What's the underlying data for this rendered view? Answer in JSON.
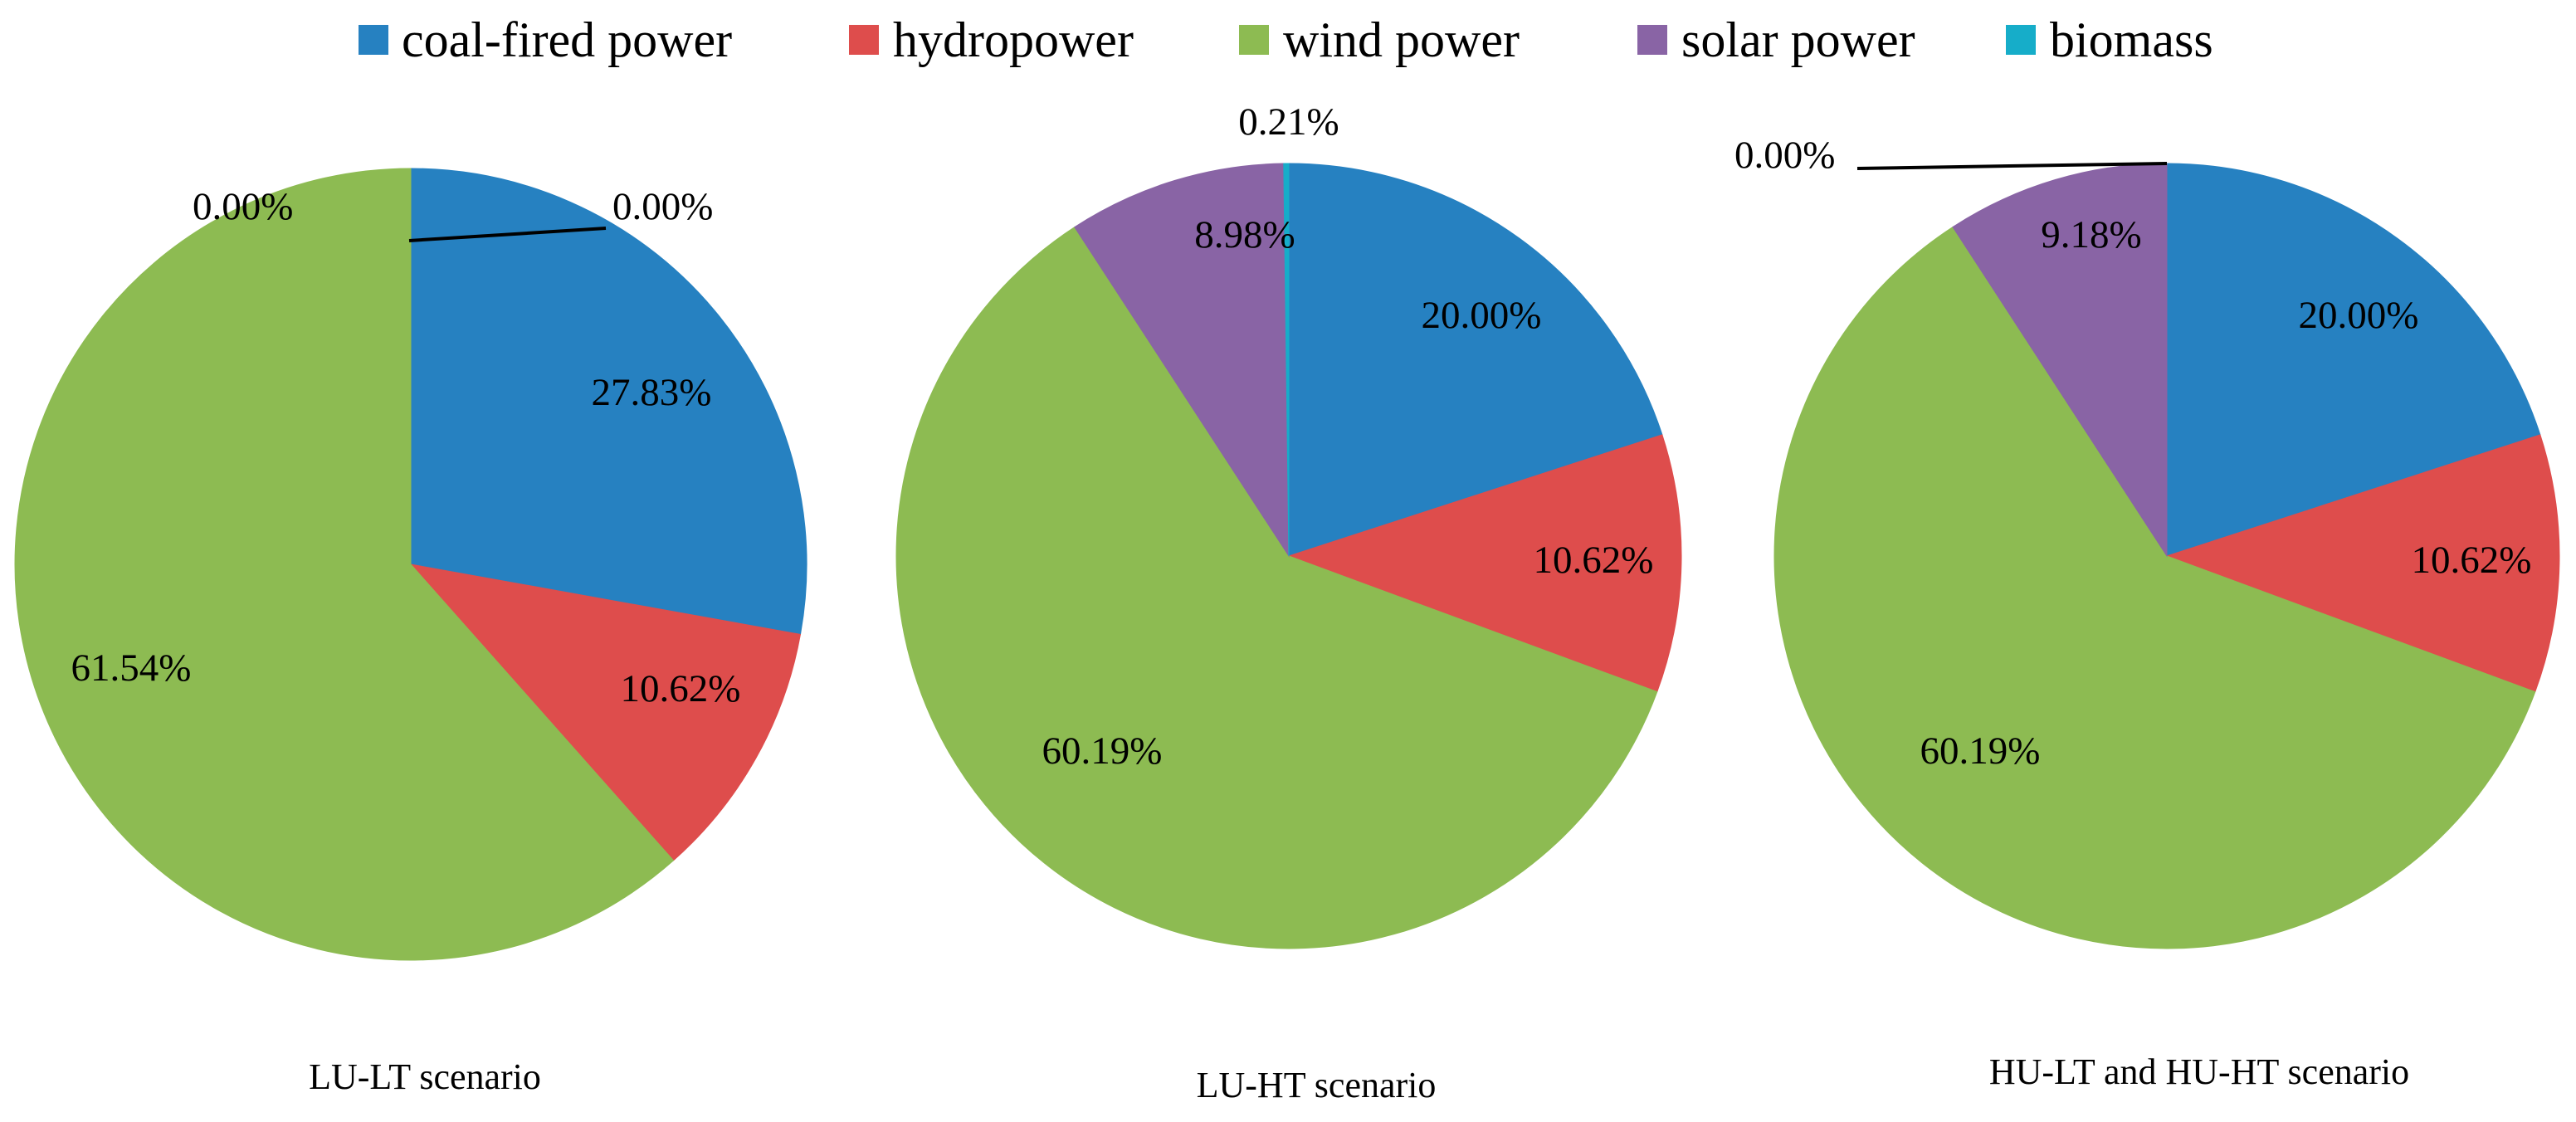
{
  "chart_data": {
    "type": "pie",
    "legend": {
      "position": "top",
      "entries": [
        {
          "name": "coal-fired power",
          "color": "#2681C1"
        },
        {
          "name": "hydropower",
          "color": "#DE4D4C"
        },
        {
          "name": "wind power",
          "color": "#8DBB52"
        },
        {
          "name": "solar power",
          "color": "#8964A5"
        },
        {
          "name": "biomass",
          "color": "#16ADC9"
        }
      ]
    },
    "charts": [
      {
        "title": "LU-LT scenario",
        "slices": [
          {
            "name": "coal-fired power",
            "value": 27.83,
            "label": "27.83%"
          },
          {
            "name": "hydropower",
            "value": 10.62,
            "label": "10.62%"
          },
          {
            "name": "wind power",
            "value": 61.54,
            "label": "61.54%"
          },
          {
            "name": "solar power",
            "value": 0.0,
            "label": "0.00%"
          },
          {
            "name": "biomass",
            "value": 0.0,
            "label": "0.00%"
          }
        ]
      },
      {
        "title": "LU-HT scenario",
        "slices": [
          {
            "name": "coal-fired power",
            "value": 20.0,
            "label": "20.00%"
          },
          {
            "name": "hydropower",
            "value": 10.62,
            "label": "10.62%"
          },
          {
            "name": "wind power",
            "value": 60.19,
            "label": "60.19%"
          },
          {
            "name": "solar power",
            "value": 8.98,
            "label": "8.98%"
          },
          {
            "name": "biomass",
            "value": 0.21,
            "label": "0.21%"
          }
        ]
      },
      {
        "title": "HU-LT and HU-HT scenario",
        "slices": [
          {
            "name": "coal-fired power",
            "value": 20.0,
            "label": "20.00%"
          },
          {
            "name": "hydropower",
            "value": 10.62,
            "label": "10.62%"
          },
          {
            "name": "wind power",
            "value": 60.19,
            "label": "60.19%"
          },
          {
            "name": "solar power",
            "value": 9.18,
            "label": "9.18%"
          },
          {
            "name": "biomass",
            "value": 0.0,
            "label": "0.00%"
          }
        ]
      }
    ]
  }
}
